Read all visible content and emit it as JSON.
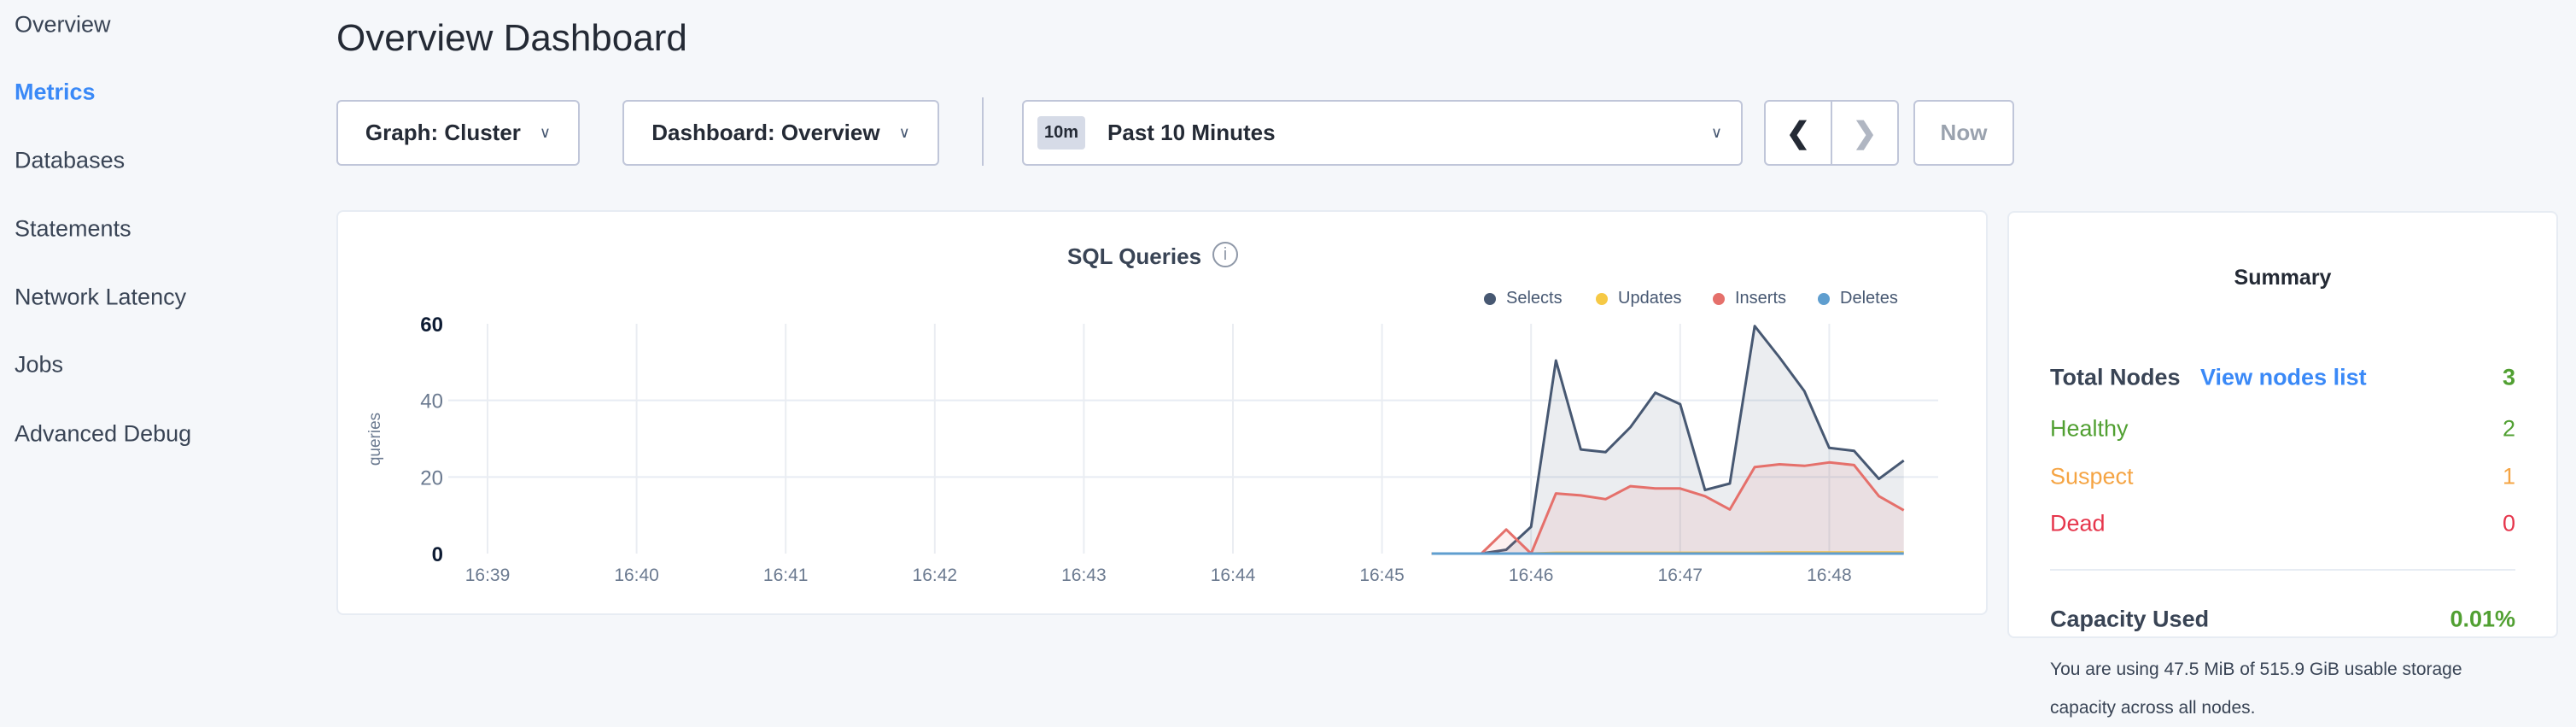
{
  "sidebar": {
    "items": [
      {
        "label": "Overview",
        "active": false
      },
      {
        "label": "Metrics",
        "active": true
      },
      {
        "label": "Databases",
        "active": false
      },
      {
        "label": "Statements",
        "active": false
      },
      {
        "label": "Network Latency",
        "active": false
      },
      {
        "label": "Jobs",
        "active": false
      },
      {
        "label": "Advanced Debug",
        "active": false
      }
    ]
  },
  "header": {
    "title": "Overview Dashboard"
  },
  "toolbar": {
    "graph_label": "Graph: Cluster",
    "dashboard_label": "Dashboard: Overview",
    "time_badge": "10m",
    "time_label": "Past 10 Minutes",
    "now_label": "Now",
    "chevron_icon": "chevron-down-icon",
    "prev_icon": "chevron-left-icon",
    "next_icon": "chevron-right-icon"
  },
  "chart_data": {
    "type": "area",
    "title": "SQL Queries",
    "ylabel": "queries",
    "xlabel": "",
    "ylim": [
      0,
      60
    ],
    "yticks": [
      "0",
      "20",
      "40",
      "60"
    ],
    "xticks": [
      "16:39",
      "16:40",
      "16:41",
      "16:42",
      "16:43",
      "16:44",
      "16:45",
      "16:46",
      "16:47",
      "16:48"
    ],
    "grid": true,
    "legend_placement": "top-right",
    "x": [
      "16:45:20",
      "16:45:30",
      "16:45:40",
      "16:45:50",
      "16:46:00",
      "16:46:10",
      "16:46:20",
      "16:46:30",
      "16:46:40",
      "16:46:50",
      "16:47:00",
      "16:47:10",
      "16:47:20",
      "16:47:30",
      "16:47:40",
      "16:47:50",
      "16:48:00",
      "16:48:10",
      "16:48:20",
      "16:48:30"
    ],
    "series": [
      {
        "name": "Selects",
        "color": "#475872",
        "values": [
          0,
          0,
          0,
          1,
          7,
          50.4,
          27.2,
          26.5,
          33,
          42,
          39,
          16.6,
          18.3,
          59.4,
          51.2,
          42.4,
          27.6,
          26.8,
          19.5,
          24.3
        ]
      },
      {
        "name": "Updates",
        "color": "#f6c945",
        "values": [
          0,
          0,
          0,
          0,
          0,
          0.2,
          0.2,
          0.2,
          0.2,
          0.2,
          0.2,
          0.2,
          0.2,
          0.2,
          0.3,
          0.3,
          0.3,
          0.3,
          0.3,
          0.3
        ]
      },
      {
        "name": "Inserts",
        "color": "#e5706b",
        "values": [
          0,
          0,
          0,
          6.3,
          0,
          15.7,
          15.2,
          14.2,
          17.6,
          17,
          17,
          15,
          11.5,
          22.6,
          23.3,
          22.9,
          23.8,
          23.1,
          15,
          11.3
        ]
      },
      {
        "name": "Deletes",
        "color": "#5f9ecf",
        "values": [
          0,
          0,
          0,
          0,
          0,
          0,
          0,
          0,
          0,
          0,
          0,
          0,
          0,
          0,
          0,
          0,
          0,
          0,
          0,
          0
        ]
      }
    ],
    "info_icon": "info-icon"
  },
  "summary": {
    "title": "Summary",
    "total_nodes_label": "Total Nodes",
    "view_nodes_link": "View nodes list",
    "total_nodes": "3",
    "healthy_label": "Healthy",
    "healthy": "2",
    "suspect_label": "Suspect",
    "suspect": "1",
    "dead_label": "Dead",
    "dead": "0",
    "capacity_label": "Capacity Used",
    "capacity_value": "0.01%",
    "capacity_desc": "You are using 47.5 MiB of 515.9 GiB usable storage capacity across all nodes.",
    "colors": {
      "healthy": "#51a032",
      "suspect": "#f5a443",
      "dead": "#e6364c",
      "link": "#3a89f7"
    }
  }
}
